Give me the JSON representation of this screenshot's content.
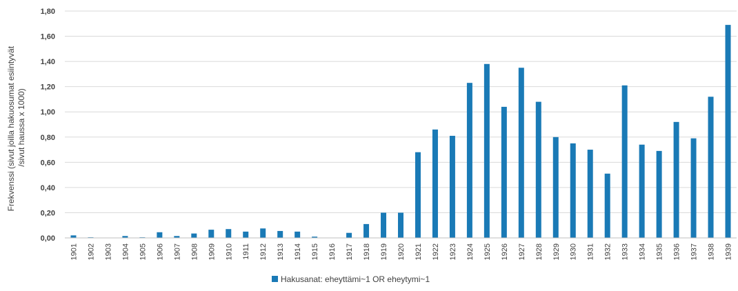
{
  "chart_data": {
    "type": "bar",
    "ylabel_line1": "Frekvenssi (sivut joilla hakuosumat esiintyvät",
    "ylabel_line2": "/sivut haussa x 1000)",
    "ylim": [
      0,
      1.8
    ],
    "yticks": [
      "0,00",
      "0,20",
      "0,40",
      "0,60",
      "0,80",
      "1,00",
      "1,20",
      "1,40",
      "1,60",
      "1,80"
    ],
    "grid": true,
    "legend_position": "bottom",
    "categories": [
      "1901",
      "1902",
      "1903",
      "1904",
      "1905",
      "1906",
      "1907",
      "1908",
      "1909",
      "1910",
      "1911",
      "1912",
      "1913",
      "1914",
      "1915",
      "1916",
      "1917",
      "1918",
      "1919",
      "1920",
      "1921",
      "1922",
      "1923",
      "1924",
      "1925",
      "1926",
      "1927",
      "1928",
      "1929",
      "1930",
      "1931",
      "1932",
      "1933",
      "1934",
      "1935",
      "1936",
      "1937",
      "1938",
      "1939"
    ],
    "series": [
      {
        "name": "Hakusanat: eheyttämi~1 OR eheytymi~1",
        "color": "#1a7ab6",
        "values": [
          0.02,
          0.005,
          0.0,
          0.015,
          0.005,
          0.045,
          0.015,
          0.035,
          0.065,
          0.07,
          0.05,
          0.075,
          0.055,
          0.05,
          0.01,
          0.0,
          0.04,
          0.11,
          0.2,
          0.2,
          0.68,
          0.86,
          0.81,
          1.23,
          1.38,
          1.04,
          1.35,
          1.08,
          0.8,
          0.75,
          0.7,
          0.51,
          1.21,
          0.74,
          0.69,
          0.92,
          0.79,
          1.12,
          1.69
        ]
      }
    ]
  }
}
